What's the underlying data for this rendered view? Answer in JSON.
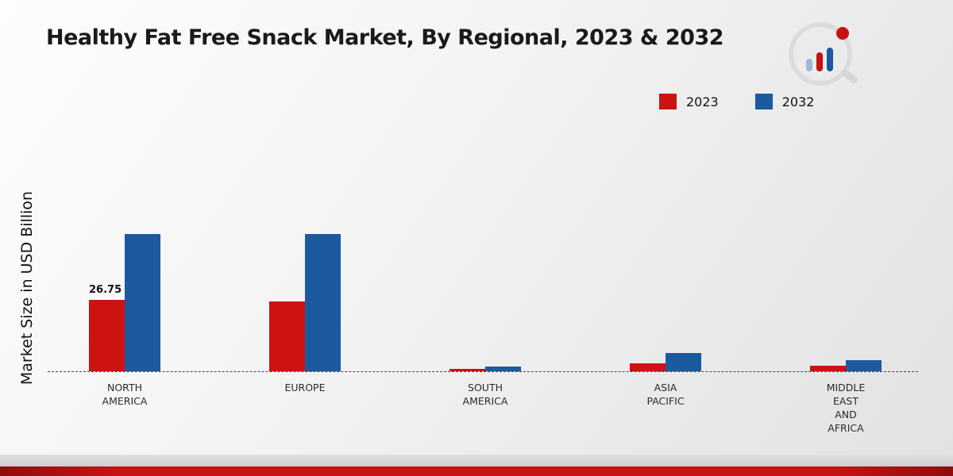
{
  "title": "Healthy Fat Free Snack Market, By Regional, 2023 & 2032",
  "y_axis_label": "Market Size in USD Billion",
  "legend": {
    "items": [
      {
        "label": "2023"
      },
      {
        "label": "2032"
      }
    ]
  },
  "colors": {
    "series_2023": "#cc1212",
    "series_2032": "#1b5a9e"
  },
  "chart_data": {
    "type": "bar",
    "title": "Healthy Fat Free Snack Market, By Regional, 2023 & 2032",
    "xlabel": "",
    "ylabel": "Market Size in USD Billion",
    "ylim": [
      0,
      55
    ],
    "grid": false,
    "legend_position": "top-right",
    "categories": [
      "NORTH AMERICA",
      "EUROPE",
      "SOUTH AMERICA",
      "ASIA PACIFIC",
      "MIDDLE EAST AND AFRICA"
    ],
    "category_label_lines": [
      [
        "NORTH",
        "AMERICA"
      ],
      [
        "EUROPE"
      ],
      [
        "SOUTH",
        "AMERICA"
      ],
      [
        "ASIA",
        "PACIFIC"
      ],
      [
        "MIDDLE",
        "EAST",
        "AND",
        "AFRICA"
      ]
    ],
    "series": [
      {
        "name": "2023",
        "color": "#cc1212",
        "values": [
          26.75,
          26.2,
          0.9,
          3.1,
          2.0
        ]
      },
      {
        "name": "2032",
        "color": "#1b5a9e",
        "values": [
          51.4,
          51.3,
          1.9,
          6.8,
          4.2
        ]
      }
    ],
    "data_labels": [
      {
        "category_index": 0,
        "series_index": 0,
        "text": "26.75"
      }
    ]
  }
}
